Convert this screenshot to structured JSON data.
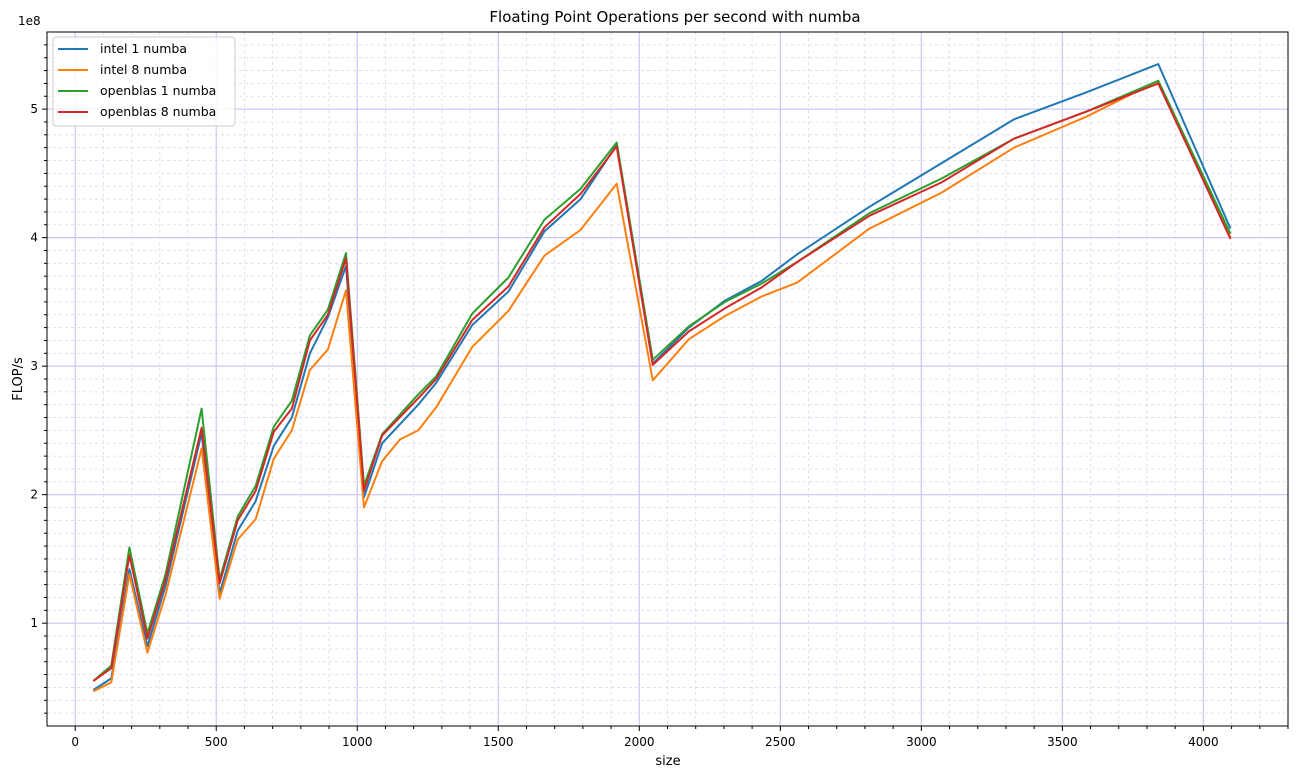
{
  "chart_data": {
    "type": "line",
    "title": "Floating Point Operations per second with numba",
    "xlabel": "size",
    "ylabel": "FLOP/s",
    "y_multiplier_label": "1e8",
    "xlim": [
      -100,
      4300
    ],
    "ylim": [
      0.2,
      5.6
    ],
    "x_ticks": [
      0,
      500,
      1000,
      1500,
      2000,
      2500,
      3000,
      3500,
      4000
    ],
    "x_tick_labels": [
      "0",
      "500",
      "1000",
      "1500",
      "2000",
      "2500",
      "3000",
      "3500",
      "4000"
    ],
    "y_ticks": [
      1,
      2,
      3,
      4,
      5
    ],
    "y_tick_labels": [
      "1",
      "2",
      "3",
      "4",
      "5"
    ],
    "grid": true,
    "legend_position": "top-left",
    "series": [
      {
        "name": "intel 1 numba",
        "color": "#1f77b4",
        "x": [
          64,
          128,
          192,
          256,
          320,
          448,
          512,
          576,
          640,
          704,
          768,
          832,
          896,
          960,
          1024,
          1088,
          1216,
          1280,
          1408,
          1536,
          1664,
          1792,
          1920,
          2048,
          2176,
          2304,
          2432,
          2560,
          2816,
          3072,
          3328,
          3584,
          3840,
          4096
        ],
        "values": [
          0.48,
          0.57,
          1.42,
          0.82,
          1.29,
          2.48,
          1.23,
          1.72,
          1.95,
          2.38,
          2.6,
          3.1,
          3.38,
          3.78,
          1.98,
          2.4,
          2.7,
          2.87,
          3.32,
          3.58,
          4.05,
          4.3,
          4.72,
          3.02,
          3.3,
          3.51,
          3.66,
          3.87,
          4.24,
          4.58,
          4.92,
          5.13,
          5.35,
          4.07
        ]
      },
      {
        "name": "intel 8 numba",
        "color": "#ff7f0e",
        "x": [
          64,
          128,
          192,
          256,
          320,
          448,
          512,
          576,
          640,
          704,
          768,
          832,
          896,
          960,
          1024,
          1088,
          1152,
          1216,
          1280,
          1408,
          1536,
          1664,
          1792,
          1920,
          2048,
          2176,
          2304,
          2432,
          2560,
          2816,
          3072,
          3328,
          3584,
          3840,
          4096
        ],
        "values": [
          0.47,
          0.54,
          1.38,
          0.77,
          1.22,
          2.36,
          1.19,
          1.65,
          1.81,
          2.28,
          2.5,
          2.97,
          3.13,
          3.59,
          1.9,
          2.26,
          2.43,
          2.5,
          2.68,
          3.15,
          3.43,
          3.86,
          4.06,
          4.42,
          2.89,
          3.21,
          3.39,
          3.54,
          3.65,
          4.07,
          4.35,
          4.7,
          4.94,
          5.22,
          4.0
        ]
      },
      {
        "name": "openblas 1 numba",
        "color": "#2ca02c",
        "x": [
          64,
          128,
          192,
          256,
          320,
          448,
          512,
          576,
          640,
          704,
          768,
          832,
          896,
          960,
          1024,
          1088,
          1216,
          1280,
          1408,
          1536,
          1664,
          1792,
          1920,
          2048,
          2176,
          2304,
          2432,
          2560,
          2816,
          3072,
          3328,
          3584,
          3840,
          4096
        ],
        "values": [
          0.55,
          0.67,
          1.59,
          0.92,
          1.38,
          2.67,
          1.34,
          1.83,
          2.07,
          2.53,
          2.73,
          3.24,
          3.44,
          3.88,
          2.07,
          2.47,
          2.78,
          2.92,
          3.41,
          3.69,
          4.14,
          4.38,
          4.74,
          3.05,
          3.31,
          3.5,
          3.64,
          3.81,
          4.19,
          4.46,
          4.77,
          4.98,
          5.22,
          4.03
        ]
      },
      {
        "name": "openblas 8 numba",
        "color": "#d62728",
        "x": [
          64,
          128,
          192,
          256,
          320,
          448,
          512,
          576,
          640,
          704,
          768,
          832,
          896,
          960,
          1024,
          1088,
          1216,
          1280,
          1408,
          1536,
          1664,
          1792,
          1920,
          2048,
          2176,
          2304,
          2432,
          2560,
          2816,
          3072,
          3328,
          3584,
          3840,
          4096
        ],
        "values": [
          0.55,
          0.65,
          1.53,
          0.88,
          1.34,
          2.52,
          1.31,
          1.8,
          2.03,
          2.49,
          2.67,
          3.2,
          3.4,
          3.84,
          2.03,
          2.46,
          2.75,
          2.9,
          3.36,
          3.62,
          4.08,
          4.34,
          4.71,
          3.01,
          3.27,
          3.45,
          3.61,
          3.81,
          4.17,
          4.43,
          4.77,
          4.98,
          5.2,
          3.99
        ]
      }
    ]
  }
}
